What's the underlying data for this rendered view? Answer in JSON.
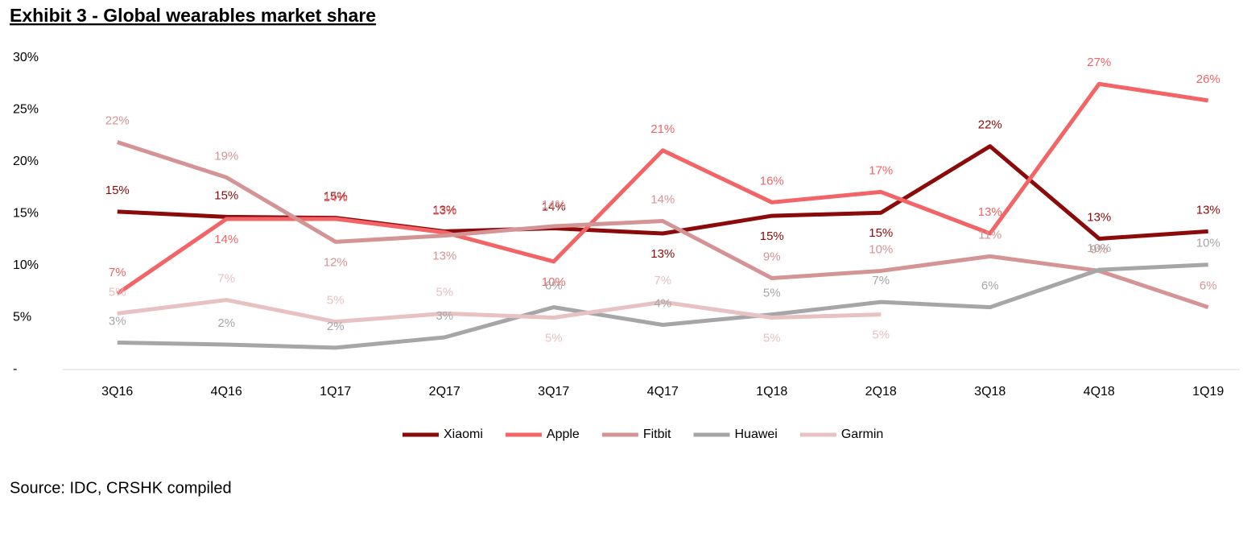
{
  "chart_data": {
    "type": "line",
    "title": "Exhibit 3 - Global wearables market share",
    "source": "Source: IDC, CRSHK compiled",
    "categories": [
      "3Q16",
      "4Q16",
      "1Q17",
      "2Q17",
      "3Q17",
      "4Q17",
      "1Q18",
      "2Q18",
      "3Q18",
      "4Q18",
      "1Q19"
    ],
    "ylim": [
      0,
      30
    ],
    "yticks": [
      {
        "value": 0,
        "label": "-"
      },
      {
        "value": 5,
        "label": "5%"
      },
      {
        "value": 10,
        "label": "10%"
      },
      {
        "value": 15,
        "label": "15%"
      },
      {
        "value": 20,
        "label": "20%"
      },
      {
        "value": 25,
        "label": "25%"
      },
      {
        "value": 30,
        "label": "30%"
      }
    ],
    "grid": false,
    "legend": "bottom",
    "series": [
      {
        "name": "Xiaomi",
        "color": "#8b0a0a",
        "values": [
          15.2,
          14.7,
          14.6,
          13.3,
          13.6,
          13.1,
          14.8,
          15.1,
          21.5,
          12.6,
          13.3
        ],
        "value_labels": [
          "15%",
          "15%",
          "15%",
          "13%",
          "14%",
          "13%",
          "15%",
          "15%",
          "22%",
          "13%",
          "13%"
        ]
      },
      {
        "name": "Apple",
        "color": "#f26466",
        "values": [
          7.3,
          14.5,
          14.5,
          13.2,
          10.4,
          21.1,
          16.1,
          17.1,
          13.1,
          27.5,
          25.9
        ],
        "value_labels": [
          "7%",
          "14%",
          "14%",
          "13%",
          "10%",
          "21%",
          "16%",
          "17%",
          "13%",
          "27%",
          "26%"
        ]
      },
      {
        "name": "Fitbit",
        "color": "#d49495",
        "values": [
          21.9,
          18.5,
          12.3,
          12.9,
          13.8,
          14.3,
          8.8,
          9.5,
          10.9,
          9.5,
          6.0
        ],
        "value_labels": [
          "22%",
          "19%",
          "12%",
          "13%",
          "14%",
          "14%",
          "9%",
          "10%",
          "11%",
          "9%",
          "6%"
        ]
      },
      {
        "name": "Huawei",
        "color": "#a6a6a6",
        "values": [
          2.6,
          2.4,
          2.1,
          3.1,
          6.0,
          4.3,
          5.3,
          6.5,
          6.0,
          9.6,
          10.1
        ],
        "value_labels": [
          "3%",
          "2%",
          "2%",
          "3%",
          "6%",
          "4%",
          "5%",
          "7%",
          "6%",
          "10%",
          "10%"
        ]
      },
      {
        "name": "Garmin",
        "color": "#e8c1c2",
        "values": [
          5.4,
          6.7,
          4.6,
          5.4,
          5.0,
          6.5,
          5.0,
          5.3,
          null,
          null,
          null
        ],
        "value_labels": [
          "5%",
          "7%",
          "5%",
          "5%",
          "5%",
          "7%",
          "5%",
          "5%",
          null,
          null,
          null
        ]
      }
    ]
  }
}
